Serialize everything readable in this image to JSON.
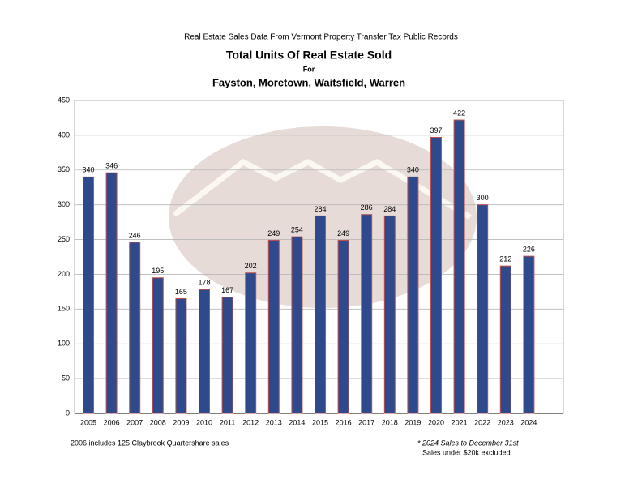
{
  "chart_data": {
    "type": "bar",
    "supertitle": "Real Estate Sales Data From Vermont Property Transfer Tax Public Records",
    "title": "Total Units Of Real Estate Sold",
    "subtitle_for": "For",
    "subtitle": "Fayston, Moretown, Waitsfield, Warren",
    "categories": [
      "2005",
      "2006",
      "2007",
      "2008",
      "2009",
      "2010",
      "2011",
      "2012",
      "2013",
      "2014",
      "2015",
      "2016",
      "2017",
      "2018",
      "2019",
      "2020",
      "2021",
      "2022",
      "2023",
      "2024"
    ],
    "values": [
      340,
      346,
      246,
      195,
      165,
      178,
      167,
      202,
      249,
      254,
      284,
      249,
      286,
      284,
      340,
      397,
      422,
      300,
      212,
      226
    ],
    "color": "#2f4a8c",
    "edge_color": "#c0504d",
    "ylim": [
      0,
      450
    ],
    "yticks": [
      0,
      50,
      100,
      150,
      200,
      250,
      300,
      350,
      400,
      450
    ],
    "grid": true,
    "notes": [
      "2006 includes 125 Claybrook Quartershare sales",
      "* 2024 Sales to December 31st",
      "Sales under $20k excluded"
    ]
  }
}
